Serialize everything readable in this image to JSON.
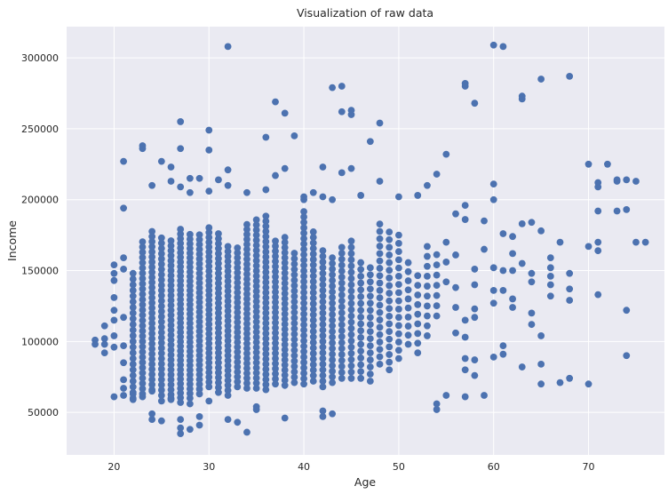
{
  "chart_data": {
    "type": "scatter",
    "title": "Visualization of raw data",
    "xlabel": "Age",
    "ylabel": "Income",
    "xlim": [
      15,
      78
    ],
    "ylim": [
      20000,
      322000
    ],
    "xticks": [
      20,
      30,
      40,
      50,
      60,
      70
    ],
    "yticks": [
      50000,
      100000,
      150000,
      200000,
      250000,
      300000
    ],
    "grid": true,
    "background": "#eaeaf2",
    "grid_color": "#ffffff",
    "marker_color": "#4c72b0",
    "series": [
      {
        "points": [
          [
            18,
            98000
          ],
          [
            18,
            101000
          ],
          [
            19,
            92000
          ],
          [
            19,
            98000
          ],
          [
            19,
            102000
          ],
          [
            19,
            111000
          ],
          [
            20,
            61000
          ],
          [
            20,
            96000
          ],
          [
            20,
            104000
          ],
          [
            20,
            115000
          ],
          [
            20,
            122000
          ],
          [
            20,
            131000
          ],
          [
            20,
            143000
          ],
          [
            20,
            148000
          ],
          [
            20,
            154000
          ],
          [
            21,
            194000
          ],
          [
            21,
            227000
          ],
          [
            21,
            159000
          ],
          [
            21,
            151000
          ],
          [
            21,
            117000
          ],
          [
            21,
            97000
          ],
          [
            21,
            85000
          ],
          [
            21,
            73000
          ],
          [
            21,
            62000
          ],
          [
            32,
            308000
          ],
          [
            43,
            279000
          ],
          [
            44,
            280000
          ],
          [
            37,
            269000
          ],
          [
            38,
            261000
          ],
          [
            44,
            262000
          ],
          [
            45,
            263000
          ],
          [
            45,
            260000
          ],
          [
            48,
            254000
          ],
          [
            27,
            255000
          ],
          [
            30,
            249000
          ],
          [
            23,
            238000
          ],
          [
            23,
            236000
          ],
          [
            27,
            236000
          ],
          [
            30,
            235000
          ],
          [
            36,
            244000
          ],
          [
            39,
            245000
          ],
          [
            47,
            241000
          ],
          [
            55,
            232000
          ],
          [
            25,
            227000
          ],
          [
            26,
            223000
          ],
          [
            32,
            221000
          ],
          [
            38,
            222000
          ],
          [
            42,
            223000
          ],
          [
            45,
            222000
          ],
          [
            52,
            203000
          ],
          [
            53,
            210000
          ],
          [
            54,
            218000
          ],
          [
            26,
            213000
          ],
          [
            28,
            215000
          ],
          [
            29,
            215000
          ],
          [
            31,
            214000
          ],
          [
            30,
            206000
          ],
          [
            34,
            205000
          ],
          [
            37,
            217000
          ],
          [
            41,
            205000
          ],
          [
            42,
            202000
          ],
          [
            44,
            219000
          ],
          [
            24,
            210000
          ],
          [
            27,
            209000
          ],
          [
            28,
            205000
          ],
          [
            32,
            210000
          ],
          [
            36,
            207000
          ],
          [
            40,
            200000
          ],
          [
            40,
            202000
          ],
          [
            43,
            200000
          ],
          [
            46,
            203000
          ],
          [
            48,
            213000
          ],
          [
            50,
            202000
          ],
          [
            57,
            282000
          ],
          [
            57,
            280000
          ],
          [
            58,
            268000
          ],
          [
            60,
            309000
          ],
          [
            61,
            308000
          ],
          [
            63,
            273000
          ],
          [
            63,
            271000
          ],
          [
            65,
            285000
          ],
          [
            68,
            287000
          ],
          [
            70,
            225000
          ],
          [
            71,
            212000
          ],
          [
            71,
            209000
          ],
          [
            72,
            225000
          ],
          [
            73,
            214000
          ],
          [
            73,
            213000
          ],
          [
            74,
            214000
          ],
          [
            75,
            213000
          ],
          [
            56,
            190000
          ],
          [
            57,
            196000
          ],
          [
            57,
            186000
          ],
          [
            59,
            185000
          ],
          [
            60,
            211000
          ],
          [
            60,
            200000
          ],
          [
            62,
            174000
          ],
          [
            63,
            183000
          ],
          [
            64,
            184000
          ],
          [
            65,
            178000
          ],
          [
            71,
            192000
          ],
          [
            73,
            192000
          ],
          [
            74,
            193000
          ],
          [
            75,
            170000
          ],
          [
            76,
            170000
          ],
          [
            71,
            170000
          ],
          [
            71,
            164000
          ],
          [
            70,
            167000
          ],
          [
            71,
            133000
          ],
          [
            74,
            122000
          ],
          [
            74,
            90000
          ],
          [
            70,
            70000
          ],
          [
            68,
            74000
          ],
          [
            67,
            71000
          ],
          [
            65,
            70000
          ],
          [
            65,
            84000
          ],
          [
            63,
            82000
          ],
          [
            57,
            61000
          ],
          [
            59,
            62000
          ],
          [
            55,
            62000
          ],
          [
            54,
            52000
          ],
          [
            54,
            56000
          ],
          [
            57,
            88000
          ],
          [
            58,
            87000
          ],
          [
            60,
            89000
          ],
          [
            61,
            91000
          ],
          [
            61,
            97000
          ],
          [
            32,
            45000
          ],
          [
            33,
            43000
          ],
          [
            34,
            36000
          ],
          [
            38,
            46000
          ],
          [
            42,
            47000
          ],
          [
            42,
            51000
          ],
          [
            43,
            49000
          ],
          [
            35,
            54000
          ],
          [
            35,
            52000
          ],
          [
            24,
            45000
          ],
          [
            24,
            49000
          ],
          [
            25,
            44000
          ],
          [
            27,
            35000
          ],
          [
            27,
            39000
          ],
          [
            28,
            38000
          ],
          [
            29,
            41000
          ],
          [
            27,
            45000
          ],
          [
            29,
            47000
          ],
          [
            30,
            58000
          ],
          [
            22,
            59000
          ],
          [
            22,
            63000
          ],
          [
            23,
            61000
          ],
          [
            24,
            65000
          ],
          [
            25,
            58000
          ],
          [
            26,
            60000
          ],
          [
            28,
            56000
          ],
          [
            21,
            67000
          ],
          [
            66,
            159000
          ],
          [
            66,
            152000
          ],
          [
            66,
            146000
          ],
          [
            66,
            140000
          ],
          [
            66,
            132000
          ],
          [
            67,
            170000
          ],
          [
            68,
            148000
          ],
          [
            68,
            137000
          ],
          [
            68,
            129000
          ],
          [
            62,
            162000
          ],
          [
            62,
            150000
          ],
          [
            62,
            130000
          ],
          [
            62,
            124000
          ],
          [
            63,
            155000
          ],
          [
            64,
            148000
          ],
          [
            64,
            142000
          ],
          [
            64,
            120000
          ],
          [
            64,
            112000
          ],
          [
            65,
            104000
          ],
          [
            58,
            151000
          ],
          [
            58,
            140000
          ],
          [
            58,
            123000
          ],
          [
            58,
            117000
          ],
          [
            59,
            165000
          ],
          [
            60,
            152000
          ],
          [
            60,
            136000
          ],
          [
            60,
            127000
          ],
          [
            61,
            176000
          ],
          [
            61,
            150000
          ],
          [
            61,
            136000
          ],
          [
            55,
            170000
          ],
          [
            55,
            156000
          ],
          [
            55,
            142000
          ],
          [
            56,
            161000
          ],
          [
            56,
            138000
          ],
          [
            56,
            124000
          ],
          [
            56,
            106000
          ],
          [
            57,
            115000
          ],
          [
            57,
            103000
          ],
          [
            57,
            80000
          ],
          [
            58,
            76000
          ]
        ],
        "clusters": [
          {
            "x": 22,
            "y_min": 60000,
            "y_max": 150000,
            "step": 4000
          },
          {
            "x": 23,
            "y_min": 63000,
            "y_max": 173000,
            "step": 3700
          },
          {
            "x": 24,
            "y_min": 66000,
            "y_max": 180000,
            "step": 3600
          },
          {
            "x": 25,
            "y_min": 62000,
            "y_max": 174000,
            "step": 3700
          },
          {
            "x": 26,
            "y_min": 59000,
            "y_max": 172000,
            "step": 3500
          },
          {
            "x": 27,
            "y_min": 57000,
            "y_max": 180000,
            "step": 3300
          },
          {
            "x": 28,
            "y_min": 60000,
            "y_max": 178000,
            "step": 3300
          },
          {
            "x": 29,
            "y_min": 63000,
            "y_max": 176000,
            "step": 3400
          },
          {
            "x": 30,
            "y_min": 68000,
            "y_max": 182000,
            "step": 3400
          },
          {
            "x": 31,
            "y_min": 64000,
            "y_max": 179000,
            "step": 3500
          },
          {
            "x": 32,
            "y_min": 62000,
            "y_max": 168000,
            "step": 3500
          },
          {
            "x": 33,
            "y_min": 68000,
            "y_max": 166000,
            "step": 3500
          },
          {
            "x": 34,
            "y_min": 67000,
            "y_max": 183000,
            "step": 3500
          },
          {
            "x": 35,
            "y_min": 67000,
            "y_max": 188000,
            "step": 3600
          },
          {
            "x": 36,
            "y_min": 66000,
            "y_max": 190000,
            "step": 3600
          },
          {
            "x": 37,
            "y_min": 70000,
            "y_max": 174000,
            "step": 3600
          },
          {
            "x": 38,
            "y_min": 69000,
            "y_max": 176000,
            "step": 3600
          },
          {
            "x": 39,
            "y_min": 71000,
            "y_max": 165000,
            "step": 3800
          },
          {
            "x": 40,
            "y_min": 70000,
            "y_max": 195000,
            "step": 3800
          },
          {
            "x": 41,
            "y_min": 72000,
            "y_max": 180000,
            "step": 3900
          },
          {
            "x": 42,
            "y_min": 68000,
            "y_max": 166000,
            "step": 4000
          },
          {
            "x": 43,
            "y_min": 71000,
            "y_max": 160000,
            "step": 4000
          },
          {
            "x": 44,
            "y_min": 74000,
            "y_max": 167000,
            "step": 4200
          },
          {
            "x": 45,
            "y_min": 74000,
            "y_max": 172000,
            "step": 4400
          },
          {
            "x": 46,
            "y_min": 74000,
            "y_max": 160000,
            "step": 4800
          },
          {
            "x": 47,
            "y_min": 72000,
            "y_max": 156000,
            "step": 5000
          },
          {
            "x": 48,
            "y_min": 84000,
            "y_max": 185000,
            "step": 5200
          },
          {
            "x": 49,
            "y_min": 80000,
            "y_max": 178000,
            "step": 5400
          },
          {
            "x": 50,
            "y_min": 88000,
            "y_max": 176000,
            "step": 5800
          },
          {
            "x": 51,
            "y_min": 98000,
            "y_max": 160000,
            "step": 6400
          },
          {
            "x": 52,
            "y_min": 92000,
            "y_max": 150000,
            "step": 6800
          },
          {
            "x": 53,
            "y_min": 104000,
            "y_max": 172000,
            "step": 7000
          },
          {
            "x": 54,
            "y_min": 118000,
            "y_max": 164000,
            "step": 7200
          }
        ]
      }
    ]
  }
}
